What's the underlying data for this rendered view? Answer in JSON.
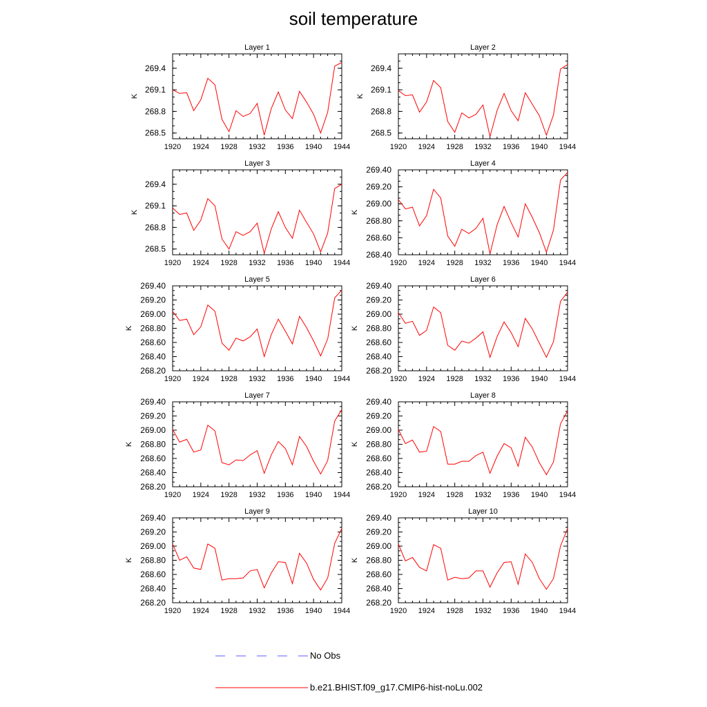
{
  "title": "soil temperature",
  "colors": {
    "model": "#ff0000",
    "obs": "#5a5aff",
    "axis": "#000000"
  },
  "legend": [
    {
      "label": "No Obs",
      "style": "dashed",
      "color": "#5a5aff"
    },
    {
      "label": "b.e21.BHIST.f09_g17.CMIP6-hist-noLu.002",
      "style": "solid",
      "color": "#ff0000"
    }
  ],
  "chart_data": [
    {
      "type": "line",
      "title": "Layer 1",
      "ylabel": "K",
      "x": [
        1920,
        1921,
        1922,
        1923,
        1924,
        1925,
        1926,
        1927,
        1928,
        1929,
        1930,
        1931,
        1932,
        1933,
        1934,
        1935,
        1936,
        1937,
        1938,
        1939,
        1940,
        1941,
        1942,
        1943,
        1944
      ],
      "ylim": [
        268.42,
        269.6
      ],
      "yticks": [
        "268.5",
        "268.8",
        "269.1",
        "269.4"
      ],
      "xticks": [
        "1920",
        "1924",
        "1928",
        "1932",
        "1936",
        "1940",
        "1944"
      ],
      "series": [
        {
          "values": [
            269.1,
            269.05,
            269.06,
            268.81,
            268.96,
            269.26,
            269.17,
            268.69,
            268.52,
            268.81,
            268.73,
            268.77,
            268.91,
            268.47,
            268.84,
            269.07,
            268.82,
            268.7,
            269.08,
            268.93,
            268.76,
            268.5,
            268.79,
            269.43,
            269.48
          ]
        }
      ]
    },
    {
      "type": "line",
      "title": "Layer 2",
      "ylabel": "K",
      "x": [
        1920,
        1921,
        1922,
        1923,
        1924,
        1925,
        1926,
        1927,
        1928,
        1929,
        1930,
        1931,
        1932,
        1933,
        1934,
        1935,
        1936,
        1937,
        1938,
        1939,
        1940,
        1941,
        1942,
        1943,
        1944
      ],
      "ylim": [
        268.42,
        269.6
      ],
      "yticks": [
        "268.5",
        "268.8",
        "269.1",
        "269.4"
      ],
      "xticks": [
        "1920",
        "1924",
        "1928",
        "1932",
        "1936",
        "1940",
        "1944"
      ],
      "series": [
        {
          "values": [
            269.09,
            269.02,
            269.03,
            268.79,
            268.93,
            269.23,
            269.13,
            268.66,
            268.51,
            268.78,
            268.71,
            268.76,
            268.89,
            268.45,
            268.81,
            269.05,
            268.81,
            268.67,
            269.06,
            268.9,
            268.74,
            268.47,
            268.75,
            269.39,
            269.45
          ]
        }
      ]
    },
    {
      "type": "line",
      "title": "Layer 3",
      "ylabel": "K",
      "x": [
        1920,
        1921,
        1922,
        1923,
        1924,
        1925,
        1926,
        1927,
        1928,
        1929,
        1930,
        1931,
        1932,
        1933,
        1934,
        1935,
        1936,
        1937,
        1938,
        1939,
        1940,
        1941,
        1942,
        1943,
        1944
      ],
      "ylim": [
        268.42,
        269.6
      ],
      "yticks": [
        "268.5",
        "268.8",
        "269.1",
        "269.4"
      ],
      "xticks": [
        "1920",
        "1924",
        "1928",
        "1932",
        "1936",
        "1940",
        "1944"
      ],
      "series": [
        {
          "values": [
            269.07,
            268.98,
            269.0,
            268.76,
            268.9,
            269.2,
            269.1,
            268.64,
            268.5,
            268.74,
            268.69,
            268.74,
            268.86,
            268.44,
            268.78,
            269.02,
            268.8,
            268.65,
            269.04,
            268.87,
            268.71,
            268.46,
            268.72,
            269.34,
            269.4
          ]
        }
      ]
    },
    {
      "type": "line",
      "title": "Layer 4",
      "ylabel": "K",
      "x": [
        1920,
        1921,
        1922,
        1923,
        1924,
        1925,
        1926,
        1927,
        1928,
        1929,
        1930,
        1931,
        1932,
        1933,
        1934,
        1935,
        1936,
        1937,
        1938,
        1939,
        1940,
        1941,
        1942,
        1943,
        1944
      ],
      "ylim": [
        268.4,
        269.4
      ],
      "yticks": [
        "268.40",
        "268.60",
        "268.80",
        "269.00",
        "269.20",
        "269.40"
      ],
      "xticks": [
        "1920",
        "1924",
        "1928",
        "1932",
        "1936",
        "1940",
        "1944"
      ],
      "series": [
        {
          "values": [
            269.05,
            268.94,
            268.96,
            268.74,
            268.86,
            269.17,
            269.07,
            268.62,
            268.5,
            268.7,
            268.65,
            268.71,
            268.83,
            268.41,
            268.75,
            268.97,
            268.78,
            268.61,
            269.0,
            268.84,
            268.66,
            268.43,
            268.69,
            269.28,
            269.37
          ]
        }
      ]
    },
    {
      "type": "line",
      "title": "Layer 5",
      "ylabel": "K",
      "x": [
        1920,
        1921,
        1922,
        1923,
        1924,
        1925,
        1926,
        1927,
        1928,
        1929,
        1930,
        1931,
        1932,
        1933,
        1934,
        1935,
        1936,
        1937,
        1938,
        1939,
        1940,
        1941,
        1942,
        1943,
        1944
      ],
      "ylim": [
        268.2,
        269.4
      ],
      "yticks": [
        "268.20",
        "268.40",
        "268.60",
        "268.80",
        "269.00",
        "269.20",
        "269.40"
      ],
      "xticks": [
        "1920",
        "1924",
        "1928",
        "1932",
        "1936",
        "1940",
        "1944"
      ],
      "series": [
        {
          "values": [
            269.04,
            268.91,
            268.93,
            268.71,
            268.82,
            269.13,
            269.04,
            268.59,
            268.49,
            268.66,
            268.62,
            268.68,
            268.79,
            268.4,
            268.71,
            268.93,
            268.76,
            268.58,
            268.97,
            268.81,
            268.62,
            268.41,
            268.65,
            269.23,
            269.34
          ]
        }
      ]
    },
    {
      "type": "line",
      "title": "Layer 6",
      "ylabel": "K",
      "x": [
        1920,
        1921,
        1922,
        1923,
        1924,
        1925,
        1926,
        1927,
        1928,
        1929,
        1930,
        1931,
        1932,
        1933,
        1934,
        1935,
        1936,
        1937,
        1938,
        1939,
        1940,
        1941,
        1942,
        1943,
        1944
      ],
      "ylim": [
        268.2,
        269.4
      ],
      "yticks": [
        "268.20",
        "268.40",
        "268.60",
        "268.80",
        "269.00",
        "269.20",
        "269.40"
      ],
      "xticks": [
        "1920",
        "1924",
        "1928",
        "1932",
        "1936",
        "1940",
        "1944"
      ],
      "series": [
        {
          "values": [
            269.02,
            268.87,
            268.9,
            268.7,
            268.77,
            269.1,
            269.02,
            268.56,
            268.49,
            268.62,
            268.59,
            268.66,
            268.75,
            268.39,
            268.68,
            268.89,
            268.74,
            268.54,
            268.94,
            268.79,
            268.59,
            268.39,
            268.61,
            269.18,
            269.31
          ]
        }
      ]
    },
    {
      "type": "line",
      "title": "Layer 7",
      "ylabel": "K",
      "x": [
        1920,
        1921,
        1922,
        1923,
        1924,
        1925,
        1926,
        1927,
        1928,
        1929,
        1930,
        1931,
        1932,
        1933,
        1934,
        1935,
        1936,
        1937,
        1938,
        1939,
        1940,
        1941,
        1942,
        1943,
        1944
      ],
      "ylim": [
        268.2,
        269.4
      ],
      "yticks": [
        "268.20",
        "268.40",
        "268.60",
        "268.80",
        "269.00",
        "269.20",
        "269.40"
      ],
      "xticks": [
        "1920",
        "1924",
        "1928",
        "1932",
        "1936",
        "1940",
        "1944"
      ],
      "series": [
        {
          "values": [
            269.01,
            268.83,
            268.87,
            268.69,
            268.72,
            269.07,
            268.99,
            268.54,
            268.51,
            268.58,
            268.57,
            268.65,
            268.71,
            268.39,
            268.65,
            268.84,
            268.74,
            268.51,
            268.91,
            268.77,
            268.56,
            268.38,
            268.57,
            269.13,
            269.29
          ]
        }
      ]
    },
    {
      "type": "line",
      "title": "Layer 8",
      "ylabel": "K",
      "x": [
        1920,
        1921,
        1922,
        1923,
        1924,
        1925,
        1926,
        1927,
        1928,
        1929,
        1930,
        1931,
        1932,
        1933,
        1934,
        1935,
        1936,
        1937,
        1938,
        1939,
        1940,
        1941,
        1942,
        1943,
        1944
      ],
      "ylim": [
        268.2,
        269.4
      ],
      "yticks": [
        "268.20",
        "268.40",
        "268.60",
        "268.80",
        "269.00",
        "269.20",
        "269.40"
      ],
      "xticks": [
        "1920",
        "1924",
        "1928",
        "1932",
        "1936",
        "1940",
        "1944"
      ],
      "series": [
        {
          "values": [
            269.01,
            268.81,
            268.86,
            268.69,
            268.7,
            269.05,
            268.98,
            268.52,
            268.52,
            268.56,
            268.56,
            268.64,
            268.69,
            268.39,
            268.63,
            268.81,
            268.75,
            268.49,
            268.9,
            268.76,
            268.54,
            268.37,
            268.55,
            269.09,
            269.27
          ]
        }
      ]
    },
    {
      "type": "line",
      "title": "Layer 9",
      "ylabel": "K",
      "x": [
        1920,
        1921,
        1922,
        1923,
        1924,
        1925,
        1926,
        1927,
        1928,
        1929,
        1930,
        1931,
        1932,
        1933,
        1934,
        1935,
        1936,
        1937,
        1938,
        1939,
        1940,
        1941,
        1942,
        1943,
        1944
      ],
      "ylim": [
        268.2,
        269.4
      ],
      "yticks": [
        "268.20",
        "268.40",
        "268.60",
        "268.80",
        "269.00",
        "269.20",
        "269.40"
      ],
      "xticks": [
        "1920",
        "1924",
        "1928",
        "1932",
        "1936",
        "1940",
        "1944"
      ],
      "series": [
        {
          "values": [
            269.03,
            268.8,
            268.85,
            268.69,
            268.67,
            269.03,
            268.97,
            268.52,
            268.54,
            268.54,
            268.55,
            268.65,
            268.67,
            268.41,
            268.62,
            268.78,
            268.77,
            268.47,
            268.9,
            268.76,
            268.53,
            268.38,
            268.55,
            269.04,
            269.25
          ]
        }
      ]
    },
    {
      "type": "line",
      "title": "Layer 10",
      "ylabel": "K",
      "x": [
        1920,
        1921,
        1922,
        1923,
        1924,
        1925,
        1926,
        1927,
        1928,
        1929,
        1930,
        1931,
        1932,
        1933,
        1934,
        1935,
        1936,
        1937,
        1938,
        1939,
        1940,
        1941,
        1942,
        1943,
        1944
      ],
      "ylim": [
        268.2,
        269.4
      ],
      "yticks": [
        "268.20",
        "268.40",
        "268.60",
        "268.80",
        "269.00",
        "269.20",
        "269.40"
      ],
      "xticks": [
        "1920",
        "1924",
        "1928",
        "1932",
        "1936",
        "1940",
        "1944"
      ],
      "series": [
        {
          "values": [
            269.03,
            268.79,
            268.84,
            268.7,
            268.65,
            269.02,
            268.97,
            268.52,
            268.56,
            268.54,
            268.55,
            268.65,
            268.65,
            268.42,
            268.62,
            268.77,
            268.78,
            268.46,
            268.89,
            268.77,
            268.54,
            268.39,
            268.54,
            269.0,
            269.25
          ]
        }
      ]
    }
  ]
}
